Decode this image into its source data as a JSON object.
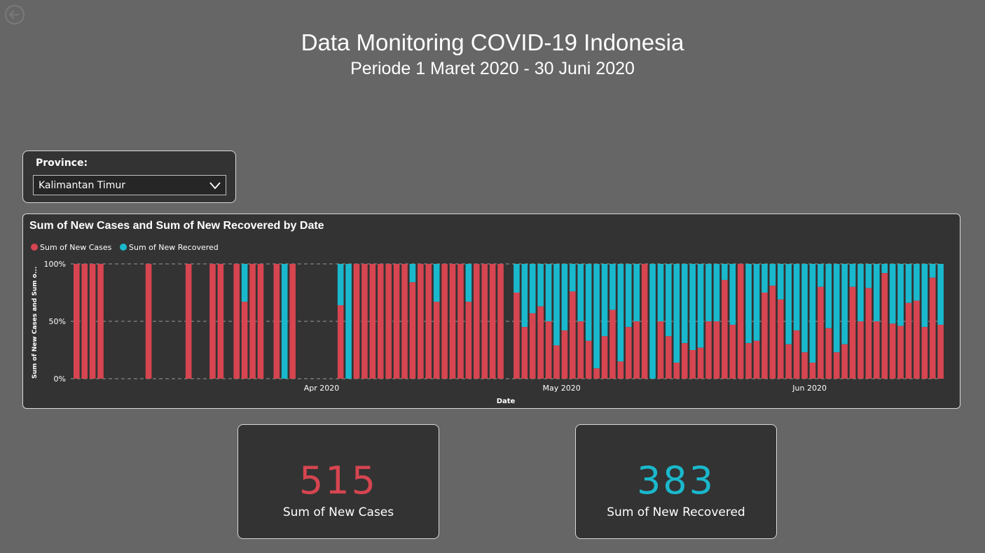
{
  "header": {
    "title": "Data Monitoring COVID-19 Indonesia",
    "subtitle": "Periode 1 Maret 2020 - 30 Juni 2020"
  },
  "slicer": {
    "label": "Province:",
    "selected": "Kalimantan Timur",
    "icon": "chevron-down-icon"
  },
  "colors": {
    "cases": "#d64550",
    "recovered": "#1ab8cc",
    "background": "#666666",
    "card": "#333333"
  },
  "kpis": [
    {
      "value": "515",
      "label": "Sum of New Cases",
      "color": "#d64550"
    },
    {
      "value": "383",
      "label": "Sum of New Recovered",
      "color": "#1ab8cc"
    }
  ],
  "chart_data": {
    "type": "bar",
    "stacked": "100%",
    "title": "Sum of New Cases and Sum of New Recovered by Date",
    "xlabel": "Date",
    "ylabel": "Sum of New Cases and Sum o...",
    "yticks": [
      "0%",
      "50%",
      "100%"
    ],
    "xticks": [
      {
        "label": "Apr 2020",
        "date": "2020-04-01"
      },
      {
        "label": "May 2020",
        "date": "2020-05-01"
      },
      {
        "label": "Jun 2020",
        "date": "2020-06-01"
      }
    ],
    "grid": true,
    "legend": "top-left",
    "series": [
      {
        "name": "Sum of New Cases",
        "color": "#d64550"
      },
      {
        "name": "Sum of New Recovered",
        "color": "#1ab8cc"
      }
    ],
    "bars": [
      {
        "date": "2020-03-01",
        "cases_pct": 100
      },
      {
        "date": "2020-03-02",
        "cases_pct": 100
      },
      {
        "date": "2020-03-03",
        "cases_pct": 100
      },
      {
        "date": "2020-03-04",
        "cases_pct": 100
      },
      {
        "date": "2020-03-10",
        "cases_pct": 100
      },
      {
        "date": "2020-03-15",
        "cases_pct": 100
      },
      {
        "date": "2020-03-18",
        "cases_pct": 100
      },
      {
        "date": "2020-03-19",
        "cases_pct": 100
      },
      {
        "date": "2020-03-21",
        "cases_pct": 100
      },
      {
        "date": "2020-03-22",
        "cases_pct": 67
      },
      {
        "date": "2020-03-23",
        "cases_pct": 100
      },
      {
        "date": "2020-03-24",
        "cases_pct": 100
      },
      {
        "date": "2020-03-26",
        "cases_pct": 100
      },
      {
        "date": "2020-03-27",
        "cases_pct": 0
      },
      {
        "date": "2020-03-28",
        "cases_pct": 100
      },
      {
        "date": "2020-04-03",
        "cases_pct": 64
      },
      {
        "date": "2020-04-04",
        "cases_pct": 0
      },
      {
        "date": "2020-04-05",
        "cases_pct": 100
      },
      {
        "date": "2020-04-06",
        "cases_pct": 100
      },
      {
        "date": "2020-04-07",
        "cases_pct": 100
      },
      {
        "date": "2020-04-08",
        "cases_pct": 100
      },
      {
        "date": "2020-04-09",
        "cases_pct": 100
      },
      {
        "date": "2020-04-10",
        "cases_pct": 100
      },
      {
        "date": "2020-04-11",
        "cases_pct": 100
      },
      {
        "date": "2020-04-12",
        "cases_pct": 84
      },
      {
        "date": "2020-04-13",
        "cases_pct": 100
      },
      {
        "date": "2020-04-14",
        "cases_pct": 100
      },
      {
        "date": "2020-04-15",
        "cases_pct": 67
      },
      {
        "date": "2020-04-16",
        "cases_pct": 100
      },
      {
        "date": "2020-04-17",
        "cases_pct": 100
      },
      {
        "date": "2020-04-18",
        "cases_pct": 100
      },
      {
        "date": "2020-04-19",
        "cases_pct": 67
      },
      {
        "date": "2020-04-20",
        "cases_pct": 100
      },
      {
        "date": "2020-04-21",
        "cases_pct": 100
      },
      {
        "date": "2020-04-22",
        "cases_pct": 100
      },
      {
        "date": "2020-04-23",
        "cases_pct": 100
      },
      {
        "date": "2020-04-25",
        "cases_pct": 75
      },
      {
        "date": "2020-04-26",
        "cases_pct": 45
      },
      {
        "date": "2020-04-27",
        "cases_pct": 57
      },
      {
        "date": "2020-04-28",
        "cases_pct": 63
      },
      {
        "date": "2020-04-29",
        "cases_pct": 50
      },
      {
        "date": "2020-04-30",
        "cases_pct": 29
      },
      {
        "date": "2020-05-01",
        "cases_pct": 42
      },
      {
        "date": "2020-05-02",
        "cases_pct": 76
      },
      {
        "date": "2020-05-03",
        "cases_pct": 50
      },
      {
        "date": "2020-05-04",
        "cases_pct": 33
      },
      {
        "date": "2020-05-05",
        "cases_pct": 9
      },
      {
        "date": "2020-05-06",
        "cases_pct": 37
      },
      {
        "date": "2020-05-07",
        "cases_pct": 60
      },
      {
        "date": "2020-05-08",
        "cases_pct": 15
      },
      {
        "date": "2020-05-09",
        "cases_pct": 45
      },
      {
        "date": "2020-05-10",
        "cases_pct": 50
      },
      {
        "date": "2020-05-11",
        "cases_pct": 100
      },
      {
        "date": "2020-05-12",
        "cases_pct": 0
      },
      {
        "date": "2020-05-13",
        "cases_pct": 50
      },
      {
        "date": "2020-05-14",
        "cases_pct": 37
      },
      {
        "date": "2020-05-15",
        "cases_pct": 14
      },
      {
        "date": "2020-05-16",
        "cases_pct": 31
      },
      {
        "date": "2020-05-17",
        "cases_pct": 25
      },
      {
        "date": "2020-05-18",
        "cases_pct": 27
      },
      {
        "date": "2020-05-19",
        "cases_pct": 50
      },
      {
        "date": "2020-05-20",
        "cases_pct": 50
      },
      {
        "date": "2020-05-21",
        "cases_pct": 86
      },
      {
        "date": "2020-05-22",
        "cases_pct": 47
      },
      {
        "date": "2020-05-23",
        "cases_pct": 100
      },
      {
        "date": "2020-05-24",
        "cases_pct": 31
      },
      {
        "date": "2020-05-25",
        "cases_pct": 33
      },
      {
        "date": "2020-05-26",
        "cases_pct": 75
      },
      {
        "date": "2020-05-27",
        "cases_pct": 81
      },
      {
        "date": "2020-05-28",
        "cases_pct": 69
      },
      {
        "date": "2020-05-29",
        "cases_pct": 30
      },
      {
        "date": "2020-05-30",
        "cases_pct": 42
      },
      {
        "date": "2020-05-31",
        "cases_pct": 23
      },
      {
        "date": "2020-06-01",
        "cases_pct": 14
      },
      {
        "date": "2020-06-02",
        "cases_pct": 80
      },
      {
        "date": "2020-06-03",
        "cases_pct": 44
      },
      {
        "date": "2020-06-04",
        "cases_pct": 23
      },
      {
        "date": "2020-06-05",
        "cases_pct": 30
      },
      {
        "date": "2020-06-06",
        "cases_pct": 80
      },
      {
        "date": "2020-06-07",
        "cases_pct": 50
      },
      {
        "date": "2020-06-08",
        "cases_pct": 79
      },
      {
        "date": "2020-06-09",
        "cases_pct": 50
      },
      {
        "date": "2020-06-10",
        "cases_pct": 92
      },
      {
        "date": "2020-06-11",
        "cases_pct": 48
      },
      {
        "date": "2020-06-12",
        "cases_pct": 46
      },
      {
        "date": "2020-06-13",
        "cases_pct": 66
      },
      {
        "date": "2020-06-14",
        "cases_pct": 68
      },
      {
        "date": "2020-06-15",
        "cases_pct": 45
      },
      {
        "date": "2020-06-16",
        "cases_pct": 88
      },
      {
        "date": "2020-06-17",
        "cases_pct": 47
      }
    ]
  }
}
